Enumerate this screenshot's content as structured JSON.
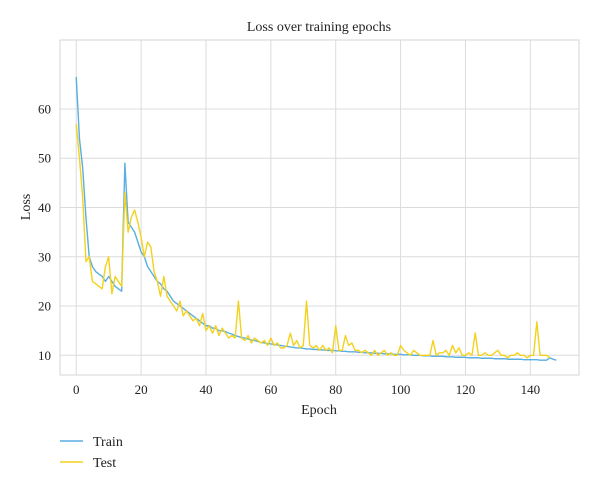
{
  "chart_data": {
    "type": "line",
    "title": "Loss over training epochs",
    "xlabel": "Epoch",
    "ylabel": "Loss",
    "xlim": [
      -5,
      155
    ],
    "ylim": [
      6,
      74
    ],
    "xticks": [
      0,
      20,
      40,
      60,
      80,
      100,
      120,
      140
    ],
    "yticks": [
      10,
      20,
      30,
      40,
      50,
      60
    ],
    "grid": true,
    "legend_position": "bottom-left, below the plot",
    "series": [
      {
        "name": "Train",
        "color": "#5aaee0",
        "values": [
          66.5,
          54.0,
          48.0,
          38.0,
          30.0,
          28.0,
          27.0,
          26.5,
          26.0,
          25.0,
          26.0,
          25.0,
          24.0,
          23.5,
          23.0,
          49.0,
          37.0,
          36.0,
          35.0,
          33.0,
          31.0,
          30.0,
          28.0,
          27.0,
          26.0,
          25.0,
          24.5,
          23.5,
          23.0,
          22.0,
          21.0,
          20.5,
          20.0,
          19.5,
          19.0,
          18.5,
          18.0,
          17.5,
          17.0,
          16.5,
          16.0,
          16.0,
          15.5,
          15.5,
          15.0,
          15.0,
          14.8,
          14.5,
          14.3,
          14.0,
          13.8,
          13.6,
          13.5,
          13.3,
          13.1,
          13.0,
          12.8,
          12.6,
          12.5,
          12.4,
          12.3,
          12.2,
          12.1,
          12.0,
          11.9,
          11.8,
          11.7,
          11.6,
          11.5,
          11.5,
          11.4,
          11.3,
          11.3,
          11.2,
          11.2,
          11.1,
          11.1,
          11.0,
          11.0,
          11.0,
          10.9,
          10.9,
          10.8,
          10.8,
          10.7,
          10.7,
          10.7,
          10.6,
          10.6,
          10.5,
          10.5,
          10.5,
          10.4,
          10.4,
          10.4,
          10.3,
          10.3,
          10.3,
          10.2,
          10.2,
          10.2,
          10.1,
          10.1,
          10.1,
          10.0,
          10.0,
          10.0,
          9.9,
          9.9,
          9.9,
          9.8,
          9.8,
          9.8,
          9.8,
          9.7,
          9.7,
          9.7,
          9.6,
          9.6,
          9.6,
          9.6,
          9.5,
          9.5,
          9.5,
          9.5,
          9.4,
          9.4,
          9.4,
          9.4,
          9.3,
          9.3,
          9.3,
          9.3,
          9.2,
          9.2,
          9.2,
          9.2,
          9.2,
          9.1,
          9.1,
          9.1,
          9.1,
          9.1,
          9.0,
          9.0,
          9.0,
          9.5,
          9.2,
          9.0
        ]
      },
      {
        "name": "Test",
        "color": "#f2d21e",
        "values": [
          57.0,
          50.0,
          42.0,
          29.0,
          30.0,
          25.0,
          24.5,
          24.0,
          23.5,
          28.0,
          30.0,
          22.5,
          26.0,
          25.0,
          24.0,
          43.0,
          35.0,
          38.0,
          39.5,
          37.0,
          34.0,
          30.0,
          33.0,
          32.0,
          27.0,
          25.0,
          22.0,
          26.0,
          22.0,
          21.0,
          20.0,
          19.0,
          21.0,
          18.0,
          19.0,
          18.0,
          17.0,
          17.5,
          16.0,
          18.5,
          15.0,
          16.0,
          14.5,
          16.0,
          14.0,
          15.5,
          14.5,
          13.5,
          14.0,
          13.5,
          21.0,
          13.5,
          13.0,
          14.0,
          12.5,
          13.5,
          13.0,
          12.5,
          13.0,
          12.0,
          13.5,
          12.0,
          12.5,
          11.5,
          11.5,
          12.0,
          14.5,
          12.0,
          13.0,
          11.5,
          12.0,
          21.0,
          12.0,
          11.5,
          12.0,
          11.0,
          12.0,
          11.0,
          11.5,
          10.5,
          16.0,
          11.0,
          11.0,
          14.0,
          12.0,
          12.5,
          11.0,
          11.0,
          10.5,
          11.0,
          10.5,
          10.0,
          11.0,
          10.0,
          10.5,
          11.0,
          10.0,
          10.5,
          10.0,
          10.0,
          12.0,
          11.0,
          10.5,
          10.0,
          11.0,
          10.5,
          10.0,
          10.0,
          10.0,
          10.0,
          13.0,
          10.0,
          10.5,
          10.5,
          11.0,
          10.0,
          12.0,
          10.5,
          11.5,
          10.0,
          10.0,
          10.5,
          10.0,
          14.5,
          10.0,
          10.0,
          10.5,
          10.0,
          10.0,
          10.5,
          11.0,
          10.0,
          10.0,
          9.5,
          10.0,
          10.0,
          10.5,
          10.0,
          10.0,
          9.5,
          10.0,
          10.0,
          16.8,
          10.0,
          10.0,
          10.0,
          9.5
        ]
      }
    ]
  }
}
